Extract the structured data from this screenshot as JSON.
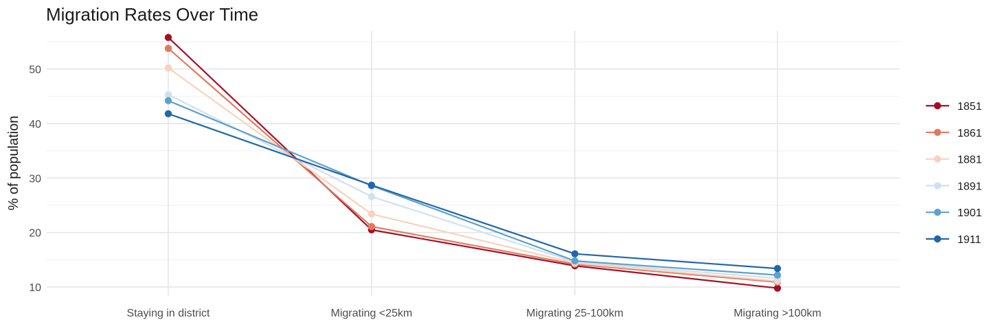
{
  "chart_data": {
    "type": "line",
    "title": "Migration Rates Over Time",
    "xlabel": "",
    "ylabel": "% of population",
    "categories": [
      "Staying in district",
      "Migrating <25km",
      "Migrating 25-100km",
      "Migrating >100km"
    ],
    "ylim": [
      8.5,
      57
    ],
    "yticks": [
      10,
      20,
      30,
      40,
      50
    ],
    "grid": true,
    "legend_position": "right",
    "series": [
      {
        "name": "1851",
        "color": "#a50f26",
        "values": [
          55.8,
          20.5,
          13.9,
          9.8
        ]
      },
      {
        "name": "1861",
        "color": "#df7a5e",
        "values": [
          53.8,
          21.1,
          14.2,
          10.9
        ]
      },
      {
        "name": "1881",
        "color": "#f8d2bd",
        "values": [
          50.2,
          23.4,
          14.4,
          11.1
        ]
      },
      {
        "name": "1891",
        "color": "#cfe1ef",
        "values": [
          45.3,
          26.6,
          14.6,
          11.6
        ]
      },
      {
        "name": "1901",
        "color": "#5ea1cb",
        "values": [
          44.2,
          28.6,
          14.8,
          12.2
        ]
      },
      {
        "name": "1911",
        "color": "#2166ac",
        "values": [
          41.8,
          28.7,
          16.1,
          13.4
        ]
      }
    ]
  }
}
